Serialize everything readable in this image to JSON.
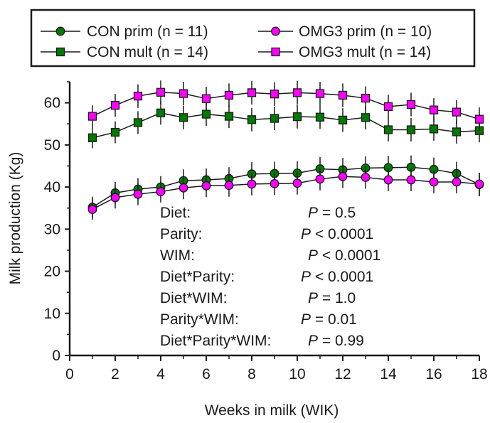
{
  "chart_data": {
    "type": "line",
    "xlabel": "Weeks in milk (WIK)",
    "ylabel": "Milk production (Kg)",
    "xlim": [
      0,
      18
    ],
    "ylim": [
      0,
      65
    ],
    "x_ticks": [
      "0",
      "2",
      "4",
      "6",
      "8",
      "10",
      "12",
      "14",
      "16",
      "18"
    ],
    "y_ticks": [
      "0",
      "10",
      "20",
      "30",
      "40",
      "50",
      "60"
    ],
    "grid": false,
    "legend_position": "top",
    "x": [
      1,
      2,
      3,
      4,
      5,
      6,
      7,
      8,
      9,
      10,
      11,
      12,
      13,
      14,
      15,
      16,
      17,
      18
    ],
    "series": [
      {
        "name": "CON prim (n = 11)",
        "marker": "circle",
        "color": "#007a00",
        "values": [
          35.2,
          38.6,
          39.5,
          40.0,
          41.5,
          41.7,
          42.0,
          43.1,
          43.2,
          43.3,
          44.3,
          44.1,
          44.5,
          44.6,
          44.7,
          44.2,
          43.2,
          40.6
        ],
        "errors": [
          2.5,
          2.6,
          2.6,
          2.6,
          2.7,
          2.7,
          2.7,
          2.8,
          2.8,
          2.8,
          2.8,
          2.8,
          2.8,
          2.8,
          2.8,
          2.8,
          2.8,
          2.8
        ]
      },
      {
        "name": "CON mult (n = 14)",
        "marker": "square",
        "color": "#007a00",
        "values": [
          51.7,
          53.0,
          55.3,
          57.6,
          56.5,
          57.3,
          56.8,
          56.0,
          56.3,
          56.7,
          56.6,
          55.9,
          56.5,
          53.6,
          53.6,
          53.8,
          53.1,
          53.4
        ],
        "errors": [
          2.5,
          2.6,
          2.7,
          2.8,
          2.8,
          2.8,
          2.8,
          2.8,
          2.8,
          2.8,
          2.8,
          2.8,
          2.8,
          2.8,
          2.8,
          2.8,
          2.8,
          2.8
        ]
      },
      {
        "name": "OMG3 prim (n = 10)",
        "marker": "circle",
        "color": "#ff00ff",
        "values": [
          34.7,
          37.5,
          38.3,
          38.9,
          39.8,
          40.3,
          40.4,
          40.7,
          40.8,
          40.9,
          41.9,
          42.5,
          42.3,
          41.7,
          41.7,
          41.2,
          41.2,
          40.7
        ],
        "errors": [
          2.5,
          2.6,
          2.6,
          2.6,
          2.7,
          2.7,
          2.7,
          2.7,
          2.7,
          2.7,
          2.7,
          2.7,
          2.7,
          2.7,
          2.7,
          2.7,
          2.7,
          2.7
        ]
      },
      {
        "name": "OMG3 mult (n = 14)",
        "marker": "square",
        "color": "#ff00ff",
        "values": [
          56.8,
          59.4,
          61.6,
          62.5,
          62.2,
          61.0,
          61.8,
          62.4,
          62.1,
          62.4,
          62.2,
          61.8,
          61.1,
          59.1,
          59.6,
          58.3,
          57.8,
          56.1
        ],
        "errors": [
          2.6,
          2.7,
          2.8,
          2.8,
          2.8,
          2.8,
          2.8,
          2.8,
          2.8,
          2.8,
          2.8,
          2.8,
          2.8,
          2.8,
          2.8,
          2.8,
          2.8,
          2.8
        ]
      }
    ],
    "annotations": [
      {
        "label": "Diet:",
        "p": "P",
        "op": "= 0.5"
      },
      {
        "label": "Parity:",
        "p": "P",
        "op": "< 0.0001"
      },
      {
        "label": "WIM:",
        "p": "P",
        "op": "< 0.0001"
      },
      {
        "label": "Diet*Parity:",
        "p": "P",
        "op": "< 0.0001"
      },
      {
        "label": "Diet*WIM:",
        "p": "P",
        "op": "= 1.0"
      },
      {
        "label": "Parity*WIM:",
        "p": "P",
        "op": "= 0.01"
      },
      {
        "label": "Diet*Parity*WIM:",
        "p": "P",
        "op": "= 0.99"
      }
    ]
  }
}
